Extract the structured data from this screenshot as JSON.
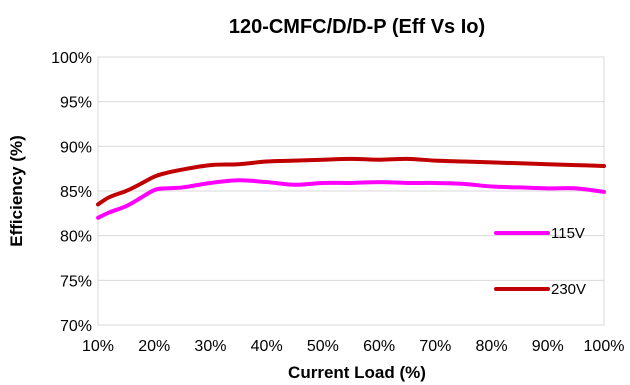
{
  "chart_data": {
    "type": "line",
    "title": "120-CMFC/D/D-P (Eff Vs Io)",
    "xlabel": "Current Load (%)",
    "ylabel": "Efficiency (%)",
    "xlim": [
      10,
      100
    ],
    "ylim": [
      70,
      100
    ],
    "grid": "horizontal",
    "legend_placement": "right, next to line ends",
    "x_ticks": [
      10,
      20,
      30,
      40,
      50,
      60,
      70,
      80,
      90,
      100
    ],
    "x_tick_labels": [
      "10%",
      "20%",
      "30%",
      "40%",
      "50%",
      "60%",
      "70%",
      "80%",
      "90%",
      "100%"
    ],
    "y_ticks": [
      70,
      75,
      80,
      85,
      90,
      95,
      100
    ],
    "y_tick_labels": [
      "70%",
      "75%",
      "80%",
      "85%",
      "90%",
      "95%",
      "100%"
    ],
    "x": [
      10,
      12,
      15,
      17,
      20,
      22,
      25,
      30,
      35,
      40,
      45,
      50,
      55,
      60,
      65,
      70,
      75,
      80,
      85,
      90,
      95,
      100
    ],
    "series": [
      {
        "name": "115V",
        "color": "#ff00ff",
        "values": [
          82.0,
          82.6,
          83.3,
          84.0,
          85.1,
          85.3,
          85.4,
          85.9,
          86.2,
          86.0,
          85.7,
          85.9,
          85.9,
          86.0,
          85.9,
          85.9,
          85.8,
          85.5,
          85.4,
          85.3,
          85.3,
          84.9
        ]
      },
      {
        "name": "230V",
        "color": "#c00000",
        "values": [
          83.5,
          84.3,
          85.0,
          85.6,
          86.6,
          87.0,
          87.4,
          87.9,
          88.0,
          88.3,
          88.4,
          88.5,
          88.6,
          88.5,
          88.6,
          88.4,
          88.3,
          88.2,
          88.1,
          88.0,
          87.9,
          87.8
        ]
      }
    ]
  }
}
